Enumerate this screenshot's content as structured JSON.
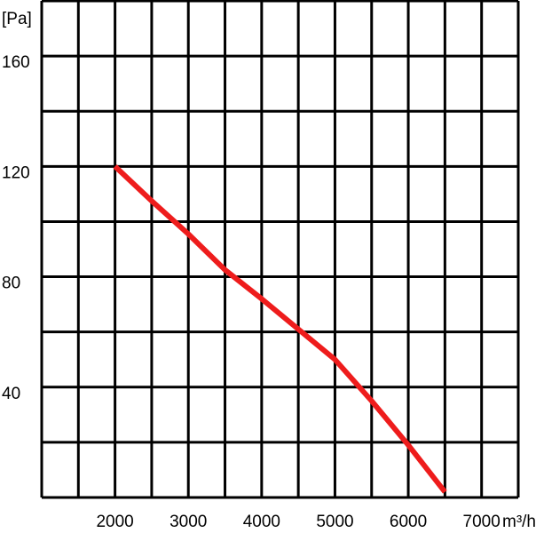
{
  "chart_data": {
    "type": "line",
    "x_label": "m³/h",
    "y_label": "[Pa]",
    "x": [
      2000,
      2500,
      3000,
      3500,
      4000,
      4500,
      5000,
      5500,
      6000,
      6500
    ],
    "series": [
      {
        "color": "#ee1c1c",
        "values": [
          120,
          107.5,
          95.5,
          82.5,
          72,
          61,
          50,
          35,
          19,
          2
        ]
      }
    ],
    "xlim": [
      1000,
      7500
    ],
    "ylim": [
      0,
      180
    ],
    "xticks": [
      2000,
      3000,
      4000,
      5000,
      6000,
      7000
    ],
    "yticks": [
      40,
      80,
      120,
      160
    ],
    "xgrid": [
      1000,
      1500,
      2000,
      2500,
      3000,
      3500,
      4000,
      4500,
      5000,
      5500,
      6000,
      6500,
      7000,
      7500
    ],
    "ygrid": [
      0,
      20,
      40,
      60,
      80,
      100,
      120,
      140,
      160,
      180
    ],
    "grid_color": "#000000"
  }
}
